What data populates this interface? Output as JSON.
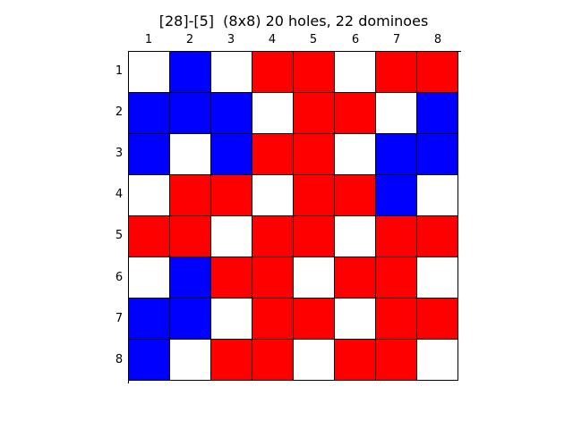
{
  "title": "[28]-[5]  (8x8) 20 holes, 22 dominoes",
  "column_labels": [
    "1",
    "2",
    "3",
    "4",
    "5",
    "6",
    "7",
    "8"
  ],
  "row_labels": [
    "1",
    "2",
    "3",
    "4",
    "5",
    "6",
    "7",
    "8"
  ],
  "colors": {
    "W": "#ffffff",
    "R": "#ff0000",
    "B": "#0000ff"
  },
  "board": [
    [
      "W",
      "B",
      "W",
      "R",
      "R",
      "W",
      "R",
      "R"
    ],
    [
      "B",
      "B",
      "B",
      "W",
      "R",
      "R",
      "W",
      "B"
    ],
    [
      "B",
      "W",
      "B",
      "R",
      "R",
      "W",
      "B",
      "B"
    ],
    [
      "W",
      "R",
      "R",
      "W",
      "R",
      "R",
      "B",
      "W"
    ],
    [
      "R",
      "R",
      "W",
      "R",
      "R",
      "W",
      "R",
      "R"
    ],
    [
      "W",
      "B",
      "R",
      "R",
      "W",
      "R",
      "R",
      "W"
    ],
    [
      "B",
      "B",
      "W",
      "R",
      "R",
      "W",
      "R",
      "R"
    ],
    [
      "B",
      "W",
      "R",
      "R",
      "W",
      "R",
      "R",
      "W"
    ]
  ]
}
